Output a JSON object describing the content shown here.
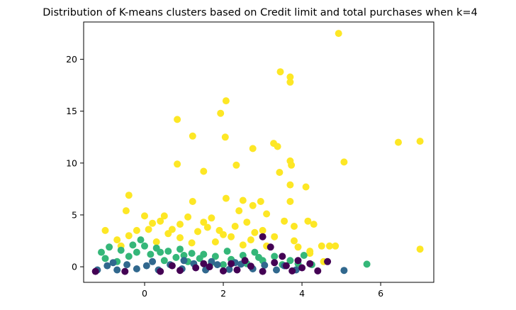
{
  "chart_data": {
    "type": "scatter",
    "title": "Distribution of K-means clusters based on Credit limit and total purchases when k=4",
    "xlabel": "",
    "ylabel": "",
    "xlim": [
      -1.55,
      7.35
    ],
    "ylim": [
      -1.5,
      23.6
    ],
    "xticks": [
      0,
      2,
      4,
      6
    ],
    "yticks": [
      0,
      5,
      10,
      15,
      20
    ],
    "xtick_labels": [
      "0",
      "2",
      "4",
      "6"
    ],
    "ytick_labels": [
      "0",
      "5",
      "10",
      "15",
      "20"
    ],
    "grid": false,
    "legend": "none",
    "colors": {
      "cluster_0": "#440154",
      "cluster_1": "#31688e",
      "cluster_2": "#35b779",
      "cluster_3": "#fde725"
    },
    "series": [
      {
        "cluster": "cluster_3",
        "color": "#fde725",
        "points": [
          [
            4.93,
            22.5
          ],
          [
            3.45,
            18.8
          ],
          [
            3.7,
            18.3
          ],
          [
            3.7,
            17.8
          ],
          [
            2.07,
            16.0
          ],
          [
            1.93,
            14.8
          ],
          [
            0.83,
            14.2
          ],
          [
            1.22,
            12.6
          ],
          [
            2.05,
            12.5
          ],
          [
            6.45,
            12.0
          ],
          [
            7.0,
            12.1
          ],
          [
            2.75,
            11.4
          ],
          [
            3.28,
            11.9
          ],
          [
            3.38,
            11.6
          ],
          [
            3.7,
            10.2
          ],
          [
            3.73,
            9.8
          ],
          [
            5.07,
            10.1
          ],
          [
            0.83,
            9.9
          ],
          [
            2.33,
            9.8
          ],
          [
            1.5,
            9.2
          ],
          [
            3.43,
            9.1
          ],
          [
            3.7,
            7.9
          ],
          [
            4.1,
            7.7
          ],
          [
            2.07,
            6.6
          ],
          [
            3.7,
            6.3
          ],
          [
            -0.4,
            6.9
          ],
          [
            -0.47,
            5.4
          ],
          [
            2.5,
            6.4
          ],
          [
            2.95,
            6.3
          ],
          [
            1.22,
            6.3
          ],
          [
            2.4,
            5.4
          ],
          [
            2.75,
            5.9
          ],
          [
            3.1,
            5.1
          ],
          [
            3.55,
            4.4
          ],
          [
            1.1,
            4.8
          ],
          [
            1.7,
            4.7
          ],
          [
            0.5,
            4.9
          ],
          [
            0.9,
            4.1
          ],
          [
            2.6,
            4.3
          ],
          [
            3.8,
            3.9
          ],
          [
            4.15,
            4.4
          ],
          [
            4.3,
            4.1
          ],
          [
            -0.2,
            3.5
          ],
          [
            0.2,
            4.2
          ],
          [
            0.0,
            4.9
          ],
          [
            1.35,
            3.4
          ],
          [
            2.0,
            3.1
          ],
          [
            3.0,
            3.5
          ],
          [
            4.5,
            2.0
          ],
          [
            4.7,
            2.0
          ],
          [
            4.85,
            2.0
          ],
          [
            4.2,
            1.5
          ],
          [
            4.55,
            0.5
          ],
          [
            7.0,
            1.7
          ],
          [
            -0.4,
            3.0
          ],
          [
            0.1,
            3.6
          ],
          [
            0.6,
            3.2
          ],
          [
            0.9,
            2.8
          ],
          [
            1.6,
            3.8
          ],
          [
            2.2,
            2.9
          ],
          [
            2.7,
            2.6
          ],
          [
            3.3,
            2.9
          ],
          [
            3.8,
            2.5
          ],
          [
            -1.0,
            3.5
          ],
          [
            -0.7,
            2.6
          ],
          [
            0.3,
            2.4
          ],
          [
            1.2,
            2.3
          ],
          [
            1.8,
            2.4
          ],
          [
            2.5,
            2.1
          ],
          [
            3.1,
            2.0
          ],
          [
            0.4,
            4.4
          ],
          [
            1.5,
            4.3
          ],
          [
            2.3,
            3.9
          ],
          [
            -0.6,
            2.0
          ],
          [
            3.9,
            1.9
          ],
          [
            4.2,
            1.3
          ],
          [
            0.7,
            3.6
          ],
          [
            1.9,
            3.5
          ],
          [
            2.8,
            3.3
          ]
        ]
      },
      {
        "cluster": "cluster_2",
        "color": "#35b779",
        "points": [
          [
            -1.1,
            1.4
          ],
          [
            -0.9,
            1.9
          ],
          [
            -0.6,
            1.6
          ],
          [
            -0.3,
            2.1
          ],
          [
            0.0,
            2.0
          ],
          [
            0.3,
            1.8
          ],
          [
            0.6,
            1.5
          ],
          [
            0.9,
            1.7
          ],
          [
            1.2,
            1.3
          ],
          [
            1.5,
            1.2
          ],
          [
            1.8,
            1.0
          ],
          [
            2.1,
            1.5
          ],
          [
            2.5,
            1.1
          ],
          [
            2.9,
            0.9
          ],
          [
            3.3,
            1.0
          ],
          [
            3.7,
            0.6
          ],
          [
            4.05,
            1.1
          ],
          [
            -0.1,
            2.6
          ],
          [
            5.65,
            0.25
          ],
          [
            -1.0,
            0.8
          ],
          [
            -0.7,
            0.5
          ],
          [
            -0.4,
            1.0
          ],
          [
            0.15,
            1.2
          ],
          [
            0.5,
            0.6
          ],
          [
            0.8,
            0.9
          ],
          [
            1.1,
            0.5
          ],
          [
            1.4,
            0.8
          ],
          [
            1.7,
            0.4
          ],
          [
            2.2,
            0.7
          ],
          [
            2.6,
            0.3
          ],
          [
            3.0,
            0.6
          ],
          [
            3.5,
            0.2
          ],
          [
            4.25,
            0.2
          ],
          [
            -0.2,
            1.4
          ],
          [
            0.4,
            1.4
          ],
          [
            1.0,
            1.1
          ],
          [
            2.0,
            0.2
          ],
          [
            2.8,
            1.4
          ],
          [
            3.9,
            0.3
          ]
        ]
      },
      {
        "cluster": "cluster_1",
        "color": "#31688e",
        "points": [
          [
            -1.2,
            -0.3
          ],
          [
            -0.95,
            0.1
          ],
          [
            -0.7,
            -0.3
          ],
          [
            -0.45,
            0.2
          ],
          [
            -0.2,
            -0.2
          ],
          [
            0.05,
            0.1
          ],
          [
            0.35,
            -0.3
          ],
          [
            0.65,
            0.2
          ],
          [
            0.95,
            -0.2
          ],
          [
            1.25,
            0.3
          ],
          [
            1.55,
            -0.3
          ],
          [
            1.85,
            0.2
          ],
          [
            2.15,
            -0.25
          ],
          [
            2.45,
            0.25
          ],
          [
            2.75,
            -0.2
          ],
          [
            3.05,
            0.15
          ],
          [
            3.35,
            -0.3
          ],
          [
            3.55,
            0.1
          ],
          [
            3.85,
            -0.3
          ],
          [
            5.07,
            -0.35
          ],
          [
            -0.8,
            0.4
          ],
          [
            0.2,
            0.5
          ],
          [
            1.0,
            0.6
          ],
          [
            1.7,
            0.5
          ],
          [
            2.3,
            0.4
          ]
        ]
      },
      {
        "cluster": "cluster_0",
        "color": "#440154",
        "points": [
          [
            -1.25,
            -0.45
          ],
          [
            -0.5,
            -0.45
          ],
          [
            0.4,
            -0.45
          ],
          [
            0.9,
            -0.35
          ],
          [
            1.3,
            -0.1
          ],
          [
            1.65,
            0.0
          ],
          [
            2.0,
            -0.4
          ],
          [
            2.35,
            -0.3
          ],
          [
            2.7,
            0.05
          ],
          [
            3.0,
            -0.45
          ],
          [
            3.0,
            2.9
          ],
          [
            3.2,
            1.9
          ],
          [
            3.5,
            1.0
          ],
          [
            3.6,
            0.1
          ],
          [
            3.75,
            -0.4
          ],
          [
            4.0,
            -0.1
          ],
          [
            4.2,
            0.3
          ],
          [
            4.4,
            -0.4
          ],
          [
            4.65,
            0.5
          ],
          [
            2.55,
            0.6
          ],
          [
            1.5,
            0.3
          ],
          [
            0.7,
            0.1
          ],
          [
            3.3,
            0.4
          ],
          [
            3.9,
            0.6
          ],
          [
            2.2,
            0.3
          ]
        ]
      }
    ]
  }
}
